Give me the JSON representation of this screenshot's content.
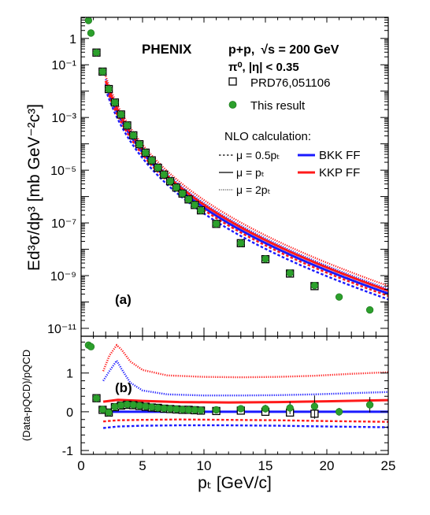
{
  "chart_data": [
    {
      "type": "scatter",
      "panel_label": "(a)",
      "experiment": "PHENIX",
      "system": "p+p,",
      "energy_prefix": "√s = 200 GeV",
      "selection": "π⁰, |η| < 0.35",
      "ylabel": "Ed³σ/dp³ [mb GeV⁻²c³]",
      "xlim": [
        0,
        25
      ],
      "ylog": true,
      "ylim_exponents": [
        -11.3,
        0.8
      ],
      "grid": false,
      "y_ticks": [
        {
          "value": 1,
          "label": "1"
        },
        {
          "value": 0.1,
          "label": "10⁻¹"
        },
        {
          "value": 0.001,
          "label": "10⁻³"
        },
        {
          "value": 1e-05,
          "label": "10⁻⁵"
        },
        {
          "value": 1e-07,
          "label": "10⁻⁷"
        },
        {
          "value": 1e-09,
          "label": "10⁻⁹"
        },
        {
          "value": 1e-11,
          "label": "10⁻¹¹"
        }
      ],
      "legend": {
        "placement": "top-right",
        "entries": [
          "PRD76,051106",
          "This result"
        ],
        "nlo_title": "NLO calculation:",
        "scale_entries": [
          "μ = 0.5pₜ",
          "μ = pₜ",
          "μ = 2pₜ"
        ],
        "ff_entries": [
          "BKK FF",
          "KKP FF"
        ]
      },
      "series": [
        {
          "name": "PRD76,051106",
          "marker": "open-square",
          "x": [
            1.25,
            1.75,
            2.25,
            2.75,
            3.25,
            3.75,
            4.25,
            4.75,
            5.25,
            5.75,
            6.25,
            6.75,
            7.25,
            7.75,
            8.25,
            8.75,
            9.25,
            9.75,
            11,
            13,
            15,
            17,
            19
          ],
          "y": [
            0.29,
            0.055,
            0.012,
            0.0037,
            0.0013,
            0.0005,
            0.00021,
            9.65e-05,
            4.62e-05,
            2.36e-05,
            1.24e-05,
            6.8e-06,
            3.8e-06,
            2.2e-06,
            1.3e-06,
            7.8e-07,
            4.8e-07,
            3e-07,
            9.2e-08,
            1.7e-08,
            4.2e-09,
            1.2e-09,
            4e-10
          ]
        },
        {
          "name": "This result",
          "marker": "filled-circle",
          "x": [
            0.6,
            0.8,
            1.25,
            1.75,
            2.25,
            2.75,
            3.25,
            3.75,
            4.25,
            4.75,
            5.25,
            5.75,
            6.25,
            6.75,
            7.25,
            7.75,
            8.25,
            8.75,
            9.25,
            9.75,
            11,
            13,
            15,
            17,
            19,
            21,
            23.5
          ],
          "y": [
            4.8,
            1.6,
            0.29,
            0.055,
            0.012,
            0.0037,
            0.0013,
            0.0005,
            0.00021,
            9.65e-05,
            4.62e-05,
            2.36e-05,
            1.24e-05,
            6.8e-06,
            3.8e-06,
            2.2e-06,
            1.3e-06,
            7.8e-07,
            4.8e-07,
            3e-07,
            9.2e-08,
            1.7e-08,
            4.3e-09,
            1.25e-09,
            4.2e-10,
            1.55e-10,
            5e-11
          ]
        }
      ],
      "curves": [
        {
          "ff": "BKK FF",
          "scale": "μ = pₜ",
          "color": "#1a1aff",
          "style": "solid",
          "log_offset": 0
        },
        {
          "ff": "BKK FF",
          "scale": "μ = 0.5pₜ",
          "color": "#1a1aff",
          "style": "dashed",
          "log_offset": -0.22
        },
        {
          "ff": "BKK FF",
          "scale": "μ = 2pₜ",
          "color": "#1a1aff",
          "style": "dotted",
          "log_offset": 0.17
        },
        {
          "ff": "KKP FF",
          "scale": "μ = pₜ",
          "color": "#ff1a1a",
          "style": "solid",
          "log_offset": 0.11
        },
        {
          "ff": "KKP FF",
          "scale": "μ = 0.5pₜ",
          "color": "#ff1a1a",
          "style": "dashed",
          "log_offset": -0.09
        },
        {
          "ff": "KKP FF",
          "scale": "μ = 2pₜ",
          "color": "#ff1a1a",
          "style": "dotted",
          "log_offset": 0.29
        }
      ]
    },
    {
      "type": "scatter",
      "panel_label": "(b)",
      "ylabel": "(Data-pQCD)/pQCD",
      "xlabel": "pₜ [GeV/c]",
      "xlim": [
        0,
        25
      ],
      "ylim": [
        -1.1,
        1.95
      ],
      "x_ticks": [
        0,
        5,
        10,
        15,
        20,
        25
      ],
      "y_ticks": [
        -1,
        0,
        1
      ],
      "grid": false,
      "series": [
        {
          "name": "PRD76,051106",
          "marker": "open-square",
          "x": [
            1.25,
            1.75,
            2.25,
            2.75,
            3.25,
            3.75,
            4.25,
            4.75,
            5.25,
            5.75,
            6.25,
            6.75,
            7.25,
            7.75,
            8.25,
            8.75,
            9.25,
            9.75,
            11,
            13,
            15,
            17,
            19
          ],
          "y": [
            0.35,
            0.05,
            -0.02,
            0.12,
            0.16,
            0.18,
            0.17,
            0.15,
            0.13,
            0.11,
            0.1,
            0.08,
            0.07,
            0.06,
            0.05,
            0.05,
            0.04,
            0.03,
            0.02,
            0.03,
            0.0,
            -0.02,
            -0.05
          ],
          "err": [
            0.03,
            0.02,
            0.02,
            0.02,
            0.02,
            0.02,
            0.02,
            0.02,
            0.02,
            0.02,
            0.02,
            0.02,
            0.03,
            0.03,
            0.03,
            0.03,
            0.03,
            0.03,
            0.04,
            0.06,
            0.08,
            0.1,
            0.13
          ]
        },
        {
          "name": "This result",
          "marker": "filled-circle",
          "x": [
            0.6,
            0.8,
            1.25,
            1.75,
            2.25,
            2.75,
            3.25,
            3.75,
            4.25,
            4.75,
            5.25,
            5.75,
            6.25,
            6.75,
            7.25,
            7.75,
            8.25,
            8.75,
            9.25,
            9.75,
            11,
            13,
            15,
            17,
            19,
            21,
            23.5
          ],
          "y": [
            1.72,
            1.68,
            0.35,
            0.06,
            -0.02,
            0.13,
            0.17,
            0.19,
            0.18,
            0.16,
            0.14,
            0.12,
            0.1,
            0.09,
            0.08,
            0.07,
            0.06,
            0.05,
            0.05,
            0.04,
            0.05,
            0.08,
            0.08,
            0.1,
            0.14,
            0.0,
            0.18
          ],
          "err": [
            0.04,
            0.04,
            0.03,
            0.02,
            0.02,
            0.02,
            0.02,
            0.02,
            0.02,
            0.02,
            0.02,
            0.02,
            0.02,
            0.02,
            0.03,
            0.03,
            0.03,
            0.03,
            0.03,
            0.03,
            0.04,
            0.06,
            0.1,
            0.16,
            0.28,
            0.1,
            0.2
          ]
        }
      ],
      "curves": [
        {
          "ff": "BKK FF",
          "scale": "μ = pₜ",
          "color": "#1a1aff",
          "style": "solid",
          "x": [
            1.8,
            3,
            5,
            10,
            15,
            20,
            25
          ],
          "y": [
            0,
            0,
            0,
            0,
            0,
            0,
            0
          ]
        },
        {
          "ff": "KKP FF",
          "scale": "μ = pₜ",
          "color": "#ff1a1a",
          "style": "solid",
          "x": [
            1.8,
            3,
            5,
            8,
            12,
            16,
            20,
            25
          ],
          "y": [
            0.26,
            0.31,
            0.28,
            0.25,
            0.24,
            0.25,
            0.27,
            0.3
          ]
        },
        {
          "ff": "KKP FF",
          "scale": "μ = 2pₜ",
          "color": "#ff1a1a",
          "style": "dotted",
          "x": [
            1.8,
            2.3,
            2.9,
            3.3,
            4,
            5,
            7,
            10,
            13,
            16,
            19,
            22,
            25
          ],
          "y": [
            1.05,
            1.45,
            1.72,
            1.6,
            1.3,
            1.08,
            0.94,
            0.9,
            0.89,
            0.9,
            0.93,
            0.98,
            1.02
          ]
        },
        {
          "ff": "BKK FF",
          "scale": "μ = 2pₜ",
          "color": "#1a1aff",
          "style": "dotted",
          "x": [
            1.8,
            2.3,
            2.9,
            3.3,
            4,
            5,
            7,
            10,
            13,
            16,
            19,
            22,
            25
          ],
          "y": [
            0.8,
            1.05,
            1.32,
            1.1,
            0.75,
            0.55,
            0.45,
            0.42,
            0.42,
            0.43,
            0.45,
            0.48,
            0.51
          ]
        },
        {
          "ff": "KKP FF",
          "scale": "μ = 0.5pₜ",
          "color": "#ff1a1a",
          "style": "dashed",
          "x": [
            1.8,
            3,
            5,
            8,
            12,
            16,
            20,
            25
          ],
          "y": [
            -0.25,
            -0.22,
            -0.21,
            -0.2,
            -0.21,
            -0.22,
            -0.24,
            -0.26
          ]
        },
        {
          "ff": "BKK FF",
          "scale": "μ = 0.5pₜ",
          "color": "#1a1aff",
          "style": "dashed",
          "x": [
            1.8,
            3,
            5,
            8,
            12,
            16,
            20,
            25
          ],
          "y": [
            -0.42,
            -0.38,
            -0.36,
            -0.35,
            -0.35,
            -0.36,
            -0.38,
            -0.4
          ]
        }
      ]
    }
  ]
}
